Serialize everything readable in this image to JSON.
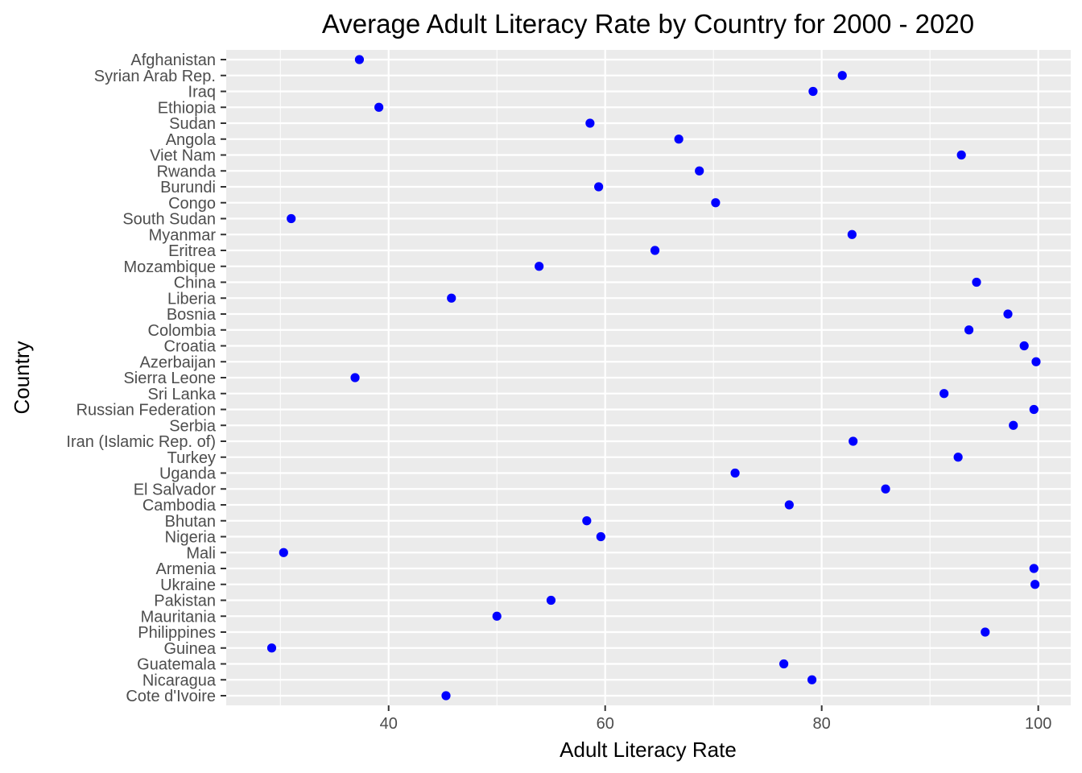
{
  "chart_data": {
    "type": "scatter",
    "title": "Average Adult Literacy Rate by Country for 2000 - 2020",
    "xlabel": "Adult Literacy Rate",
    "ylabel": "Country",
    "xlim": [
      25.0,
      103.0
    ],
    "xticks": [
      40,
      60,
      80,
      100
    ],
    "xtick_labels": [
      "40",
      "60",
      "80",
      "100"
    ],
    "grid": true,
    "point_color": "#0000ff",
    "panel_color": "#ebebeb",
    "categories": [
      "Afghanistan",
      "Syrian Arab Rep.",
      "Iraq",
      "Ethiopia",
      "Sudan",
      "Angola",
      "Viet Nam",
      "Rwanda",
      "Burundi",
      "Congo",
      "South Sudan",
      "Myanmar",
      "Eritrea",
      "Mozambique",
      "China",
      "Liberia",
      "Bosnia",
      "Colombia",
      "Croatia",
      "Azerbaijan",
      "Sierra Leone",
      "Sri Lanka",
      "Russian Federation",
      "Serbia",
      "Iran (Islamic Rep. of)",
      "Turkey",
      "Uganda",
      "El Salvador",
      "Cambodia",
      "Bhutan",
      "Nigeria",
      "Mali",
      "Armenia",
      "Ukraine",
      "Pakistan",
      "Mauritania",
      "Philippines",
      "Guinea",
      "Guatemala",
      "Nicaragua",
      "Cote d'Ivoire"
    ],
    "values": [
      37.3,
      81.9,
      79.2,
      39.1,
      58.6,
      66.8,
      92.9,
      68.7,
      59.4,
      70.2,
      31.0,
      82.8,
      64.6,
      53.9,
      94.3,
      45.8,
      97.2,
      93.6,
      98.7,
      99.8,
      36.9,
      91.3,
      99.6,
      97.7,
      82.9,
      92.6,
      72.0,
      85.9,
      77.0,
      58.3,
      59.6,
      30.3,
      99.6,
      99.7,
      55.0,
      50.0,
      95.1,
      29.2,
      76.5,
      79.1,
      45.3
    ]
  }
}
